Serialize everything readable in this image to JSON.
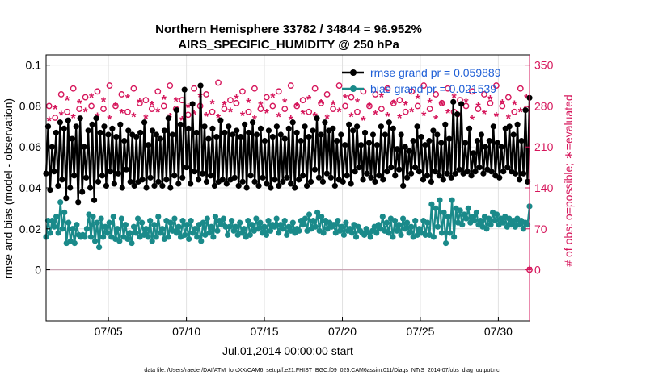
{
  "chart_data": {
    "type": "line",
    "title": "Northern Hemisphere 33782 / 34844 = 96.952%",
    "subtitle": "AIRS_SPECIFIC_HUMIDITY @ 250 hPa",
    "xlabel": "Jul.01,2014 00:00:00 start",
    "ylabel_left": "rmse and bias (model - observation)",
    "ylabel_right": "# of obs: o=possible; ∗=evaluated",
    "x_range": [
      1,
      32
    ],
    "xticks": [
      5,
      10,
      15,
      20,
      25,
      30
    ],
    "xtick_labels": [
      "07/05",
      "07/10",
      "07/15",
      "07/20",
      "07/25",
      "07/30"
    ],
    "ylim_left": [
      -0.025,
      0.105
    ],
    "yticks_left": [
      0,
      0.02,
      0.04,
      0.06,
      0.08,
      0.1
    ],
    "ytick_labels_left": [
      "0",
      "0.02",
      "0.04",
      "0.06",
      "0.08",
      "0.1"
    ],
    "ylim_right": [
      -87.5,
      367.5
    ],
    "yticks_right": [
      0,
      70,
      140,
      210,
      280,
      350
    ],
    "ytick_labels_right": [
      "0",
      "70",
      "140",
      "210",
      "280",
      "350"
    ],
    "grid": true,
    "legend_position": "top-right",
    "series": [
      {
        "name": "rmse grand pr = 0.059889",
        "axis": "left",
        "color": "#000000",
        "values": [
          0.047,
          0.07,
          0.039,
          0.06,
          0.048,
          0.067,
          0.041,
          0.072,
          0.044,
          0.069,
          0.035,
          0.073,
          0.04,
          0.064,
          0.046,
          0.07,
          0.033,
          0.074,
          0.038,
          0.06,
          0.045,
          0.068,
          0.04,
          0.071,
          0.034,
          0.074,
          0.043,
          0.067,
          0.046,
          0.07,
          0.041,
          0.066,
          0.048,
          0.069,
          0.042,
          0.065,
          0.047,
          0.071,
          0.04,
          0.063,
          0.049,
          0.068,
          0.043,
          0.066,
          0.041,
          0.065,
          0.043,
          0.067,
          0.044,
          0.072,
          0.04,
          0.061,
          0.045,
          0.068,
          0.041,
          0.066,
          0.043,
          0.064,
          0.041,
          0.068,
          0.044,
          0.074,
          0.04,
          0.066,
          0.046,
          0.078,
          0.042,
          0.071,
          0.045,
          0.088,
          0.05,
          0.069,
          0.042,
          0.081,
          0.048,
          0.067,
          0.044,
          0.09,
          0.047,
          0.07,
          0.043,
          0.064,
          0.046,
          0.069,
          0.041,
          0.065,
          0.043,
          0.073,
          0.044,
          0.067,
          0.042,
          0.07,
          0.044,
          0.066,
          0.045,
          0.068,
          0.041,
          0.065,
          0.043,
          0.071,
          0.04,
          0.067,
          0.046,
          0.072,
          0.043,
          0.066,
          0.041,
          0.069,
          0.045,
          0.063,
          0.042,
          0.068,
          0.04,
          0.065,
          0.044,
          0.07,
          0.041,
          0.066,
          0.043,
          0.064,
          0.045,
          0.069,
          0.042,
          0.072,
          0.04,
          0.067,
          0.044,
          0.063,
          0.046,
          0.07,
          0.041,
          0.065,
          0.043,
          0.068,
          0.049,
          0.074,
          0.045,
          0.066,
          0.043,
          0.072,
          0.047,
          0.068,
          0.045,
          0.069,
          0.041,
          0.063,
          0.044,
          0.066,
          0.043,
          0.061,
          0.046,
          0.071,
          0.042,
          0.068,
          0.048,
          0.07,
          0.05,
          0.061,
          0.044,
          0.067,
          0.047,
          0.062,
          0.045,
          0.066,
          0.043,
          0.061,
          0.046,
          0.07,
          0.044,
          0.066,
          0.048,
          0.072,
          0.05,
          0.069,
          0.046,
          0.059,
          0.049,
          0.066,
          0.041,
          0.06,
          0.045,
          0.058,
          0.047,
          0.063,
          0.05,
          0.07,
          0.048,
          0.065,
          0.044,
          0.061,
          0.046,
          0.063,
          0.043,
          0.068,
          0.048,
          0.066,
          0.046,
          0.062,
          0.044,
          0.071,
          0.047,
          0.064,
          0.045,
          0.082,
          0.047,
          0.076,
          0.049,
          0.081,
          0.047,
          0.062,
          0.048,
          0.069,
          0.046,
          0.057,
          0.048,
          0.063,
          0.05,
          0.066,
          0.047,
          0.06,
          0.049,
          0.063,
          0.048,
          0.07,
          0.046,
          0.062,
          0.045,
          0.06,
          0.048,
          0.069,
          0.05,
          0.07,
          0.048,
          0.066,
          0.047,
          0.071,
          0.044,
          0.063,
          0.047,
          0.078,
          0.043,
          0.084
        ]
      },
      {
        "name": "bias grand pr = 0.021539",
        "axis": "left",
        "color": "#1a8a8a",
        "values": [
          0.016,
          0.024,
          0.018,
          0.024,
          0.021,
          0.026,
          0.018,
          0.033,
          0.02,
          0.028,
          0.013,
          0.023,
          0.014,
          0.02,
          0.013,
          0.022,
          0.017,
          0.016,
          0.017,
          0.016,
          0.02,
          0.027,
          0.016,
          0.026,
          0.014,
          0.023,
          0.011,
          0.025,
          0.016,
          0.021,
          0.018,
          0.023,
          0.016,
          0.026,
          0.015,
          0.02,
          0.014,
          0.025,
          0.016,
          0.022,
          0.015,
          0.018,
          0.013,
          0.021,
          0.018,
          0.025,
          0.016,
          0.023,
          0.017,
          0.02,
          0.016,
          0.024,
          0.014,
          0.022,
          0.016,
          0.026,
          0.018,
          0.02,
          0.015,
          0.024,
          0.016,
          0.023,
          0.019,
          0.025,
          0.018,
          0.021,
          0.016,
          0.024,
          0.017,
          0.022,
          0.015,
          0.024,
          0.018,
          0.02,
          0.016,
          0.022,
          0.014,
          0.023,
          0.017,
          0.025,
          0.018,
          0.021,
          0.016,
          0.026,
          0.019,
          0.024,
          0.022,
          0.025,
          0.021,
          0.017,
          0.021,
          0.024,
          0.019,
          0.021,
          0.017,
          0.023,
          0.018,
          0.02,
          0.016,
          0.024,
          0.017,
          0.022,
          0.019,
          0.025,
          0.02,
          0.023,
          0.018,
          0.021,
          0.017,
          0.024,
          0.019,
          0.022,
          0.021,
          0.025,
          0.018,
          0.022,
          0.02,
          0.024,
          0.017,
          0.021,
          0.019,
          0.023,
          0.018,
          0.02,
          0.019,
          0.024,
          0.022,
          0.025,
          0.019,
          0.027,
          0.02,
          0.024,
          0.021,
          0.028,
          0.019,
          0.026,
          0.018,
          0.024,
          0.02,
          0.023,
          0.021,
          0.022,
          0.018,
          0.024,
          0.019,
          0.021,
          0.017,
          0.023,
          0.019,
          0.02,
          0.018,
          0.022,
          0.016,
          0.021,
          0.019,
          0.018,
          0.017,
          0.02,
          0.018,
          0.016,
          0.019,
          0.021,
          0.018,
          0.022,
          0.02,
          0.026,
          0.019,
          0.023,
          0.018,
          0.025,
          0.016,
          0.024,
          0.019,
          0.022,
          0.017,
          0.025,
          0.02,
          0.023,
          0.018,
          0.021,
          0.016,
          0.024,
          0.017,
          0.02,
          0.018,
          0.024,
          0.017,
          0.023,
          0.017,
          0.032,
          0.016,
          0.03,
          0.021,
          0.034,
          0.018,
          0.028,
          0.013,
          0.026,
          0.018,
          0.034,
          0.016,
          0.03,
          0.023,
          0.029,
          0.022,
          0.027,
          0.025,
          0.03,
          0.023,
          0.026,
          0.024,
          0.028,
          0.022,
          0.024,
          0.021,
          0.026,
          0.02,
          0.025,
          0.022,
          0.028,
          0.024,
          0.027,
          0.022,
          0.025,
          0.023,
          0.026,
          0.021,
          0.025,
          0.022,
          0.024,
          0.021,
          0.025,
          0.022,
          0.024,
          0.02,
          0.023,
          0.022,
          0.031
        ]
      }
    ],
    "obs_series": [
      {
        "name": "possible",
        "axis": "right",
        "marker": "o",
        "color": "#d6165b",
        "values": [
          280,
          260,
          300,
          270,
          310,
          275,
          295,
          280,
          305,
          275,
          315,
          280,
          300,
          270,
          310,
          285,
          290,
          275,
          305,
          280,
          315,
          275,
          290,
          265,
          310,
          280,
          300,
          270,
          320,
          275,
          290,
          285,
          305,
          270,
          310,
          275,
          295,
          280,
          305,
          275,
          315,
          280,
          290,
          270,
          310,
          285,
          300,
          275,
          315,
          280,
          295,
          270,
          305,
          280,
          300,
          275,
          310,
          285,
          290,
          270,
          305,
          280,
          315,
          275,
          300,
          285,
          310,
          270,
          290,
          280,
          305,
          275,
          300,
          285,
          315,
          280,
          295,
          270,
          310,
          275
        ]
      },
      {
        "name": "evaluated",
        "axis": "right",
        "marker": "*",
        "color": "#d6165b",
        "values": [
          255,
          275,
          265,
          290,
          260,
          285,
          270,
          295,
          262,
          288,
          258,
          280,
          268,
          294,
          262,
          286,
          259,
          282,
          270,
          292,
          261,
          288,
          256,
          278,
          266,
          296,
          263,
          284,
          260,
          282,
          270,
          293,
          264,
          286,
          258,
          281,
          268,
          295,
          262,
          287,
          257,
          279,
          267,
          292,
          263,
          285,
          259,
          283,
          270,
          294,
          262,
          287,
          256,
          279,
          266,
          296,
          263,
          284,
          260,
          282,
          270,
          293,
          264,
          286,
          258,
          281,
          268,
          295,
          262,
          287,
          257,
          279,
          267,
          292,
          263,
          285,
          259,
          283,
          270,
          294
        ]
      }
    ],
    "end_obs_marker": {
      "x": 32,
      "value": 0
    },
    "footer": "data file: /Users/raeder/DAI/ATM_forcXX/CAM6_setup/f.e21.FHIST_BGC.f09_025.CAM6assim.011/Diags_NTrS_2014-07/obs_diag_output.nc"
  }
}
